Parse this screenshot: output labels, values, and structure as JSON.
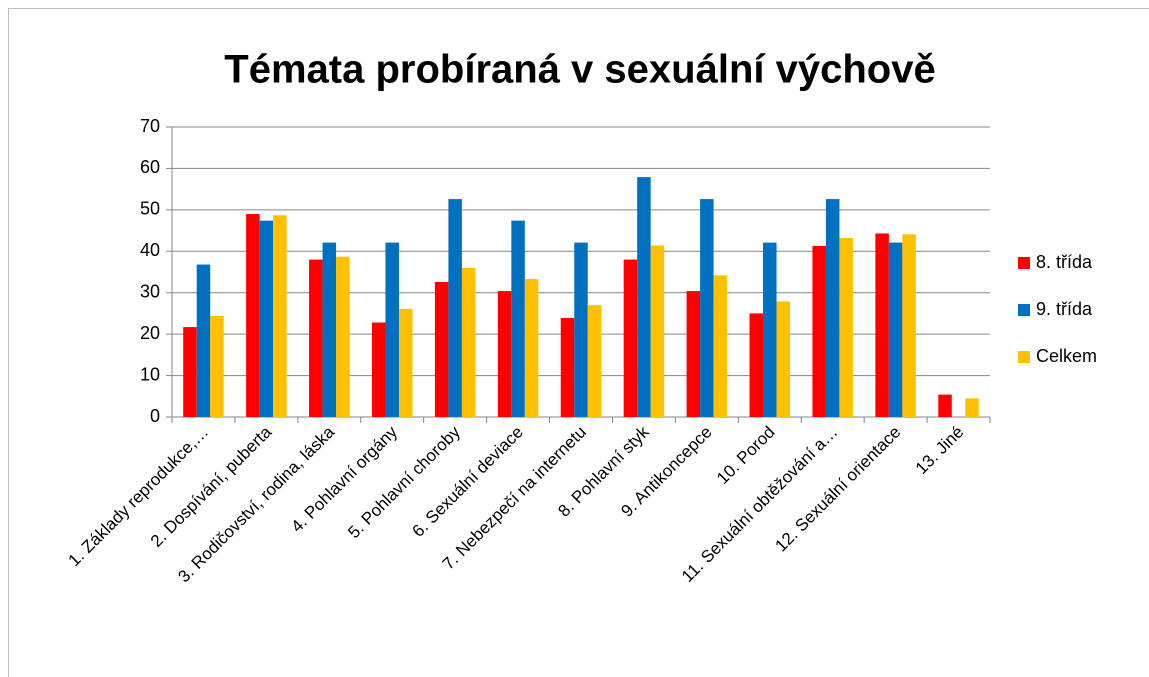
{
  "chart_data": {
    "type": "bar",
    "title": "Témata probíraná v sexuální výchově",
    "categories": [
      "1. Základy reprodukce,…",
      "2. Dospívání, puberta",
      "3. Rodičovství, rodina, láska",
      "4. Pohlavní orgány",
      "5. Pohlavní choroby",
      "6. Sexuální deviace",
      "7. Nebezpečí na internetu",
      "8. Pohlavní styk",
      "9. Antikoncepce",
      "10. Porod",
      "11. Sexuální obtěžování a…",
      "12. Sexuální orientace",
      "13. Jiné"
    ],
    "series": [
      {
        "name": "8. třída",
        "color": "#ff0000",
        "values": [
          21.7,
          49,
          38,
          22.8,
          32.6,
          30.4,
          23.9,
          38,
          30.4,
          25,
          41.3,
          44.3,
          5.4
        ]
      },
      {
        "name": "9. třída",
        "color": "#0070c0",
        "values": [
          36.8,
          47.4,
          42.1,
          42.1,
          52.6,
          47.4,
          42.1,
          57.9,
          52.6,
          42.1,
          52.6,
          42.1,
          0
        ]
      },
      {
        "name": "Celkem",
        "color": "#ffc000",
        "values": [
          24.4,
          48.7,
          38.7,
          26.1,
          36,
          33.3,
          27,
          41.4,
          34.2,
          27.9,
          43.2,
          44.1,
          4.5
        ]
      }
    ],
    "ylim": [
      0,
      70
    ],
    "yticks": [
      0,
      10,
      20,
      30,
      40,
      50,
      60,
      70
    ],
    "grid": true,
    "legend": "right"
  }
}
